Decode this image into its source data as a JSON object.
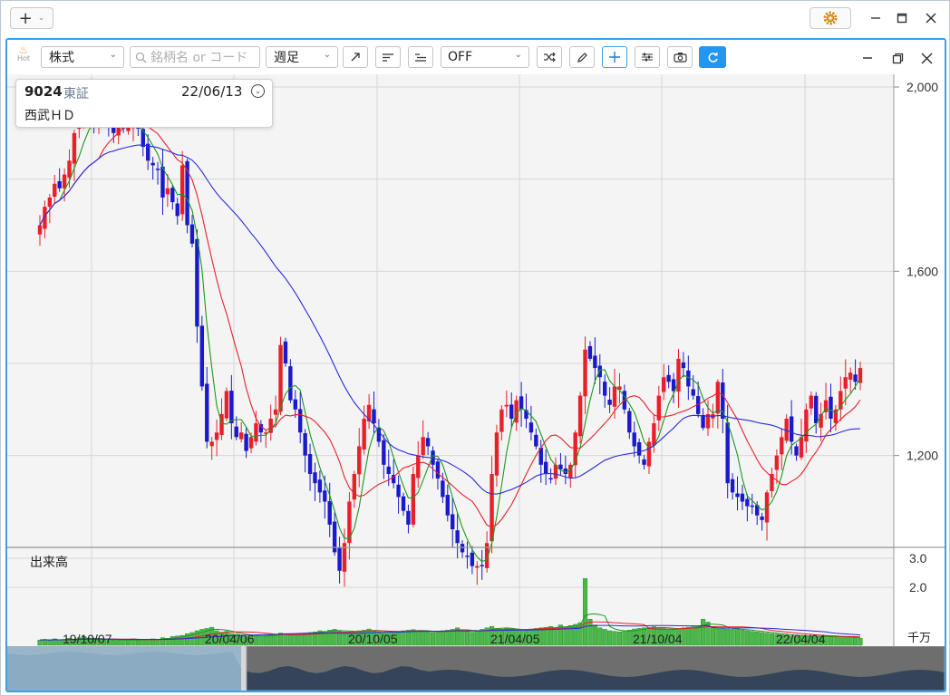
{
  "window": {
    "add_tab_label": "+",
    "controls": [
      "minimize-icon",
      "maximize-icon",
      "close-icon"
    ]
  },
  "toolbar": {
    "hot_label": "Hot",
    "market_select": "株式",
    "search_placeholder": "銘柄名 or コード",
    "period_select": "週足",
    "indicator_select": "OFF",
    "icons": [
      "trend-line-icon",
      "align-left-icon",
      "align-right-icon",
      "shuffle-icon",
      "pencil-icon",
      "crosshair-icon",
      "settings-sliders-icon",
      "camera-icon",
      "refresh-icon"
    ],
    "window_controls": [
      "minimize-icon",
      "restore-icon",
      "close-icon"
    ]
  },
  "info": {
    "code": "9024",
    "exchange": "東証",
    "date": "22/06/13",
    "name": "西武ＨＤ"
  },
  "chart_data": {
    "type": "candlestick",
    "price_axis": {
      "ticks": [
        "2,000",
        "1,600",
        "1,200"
      ],
      "range": [
        1040,
        2000
      ]
    },
    "volume_axis": {
      "label": "出来高",
      "ticks": [
        "3.0",
        "2.0"
      ],
      "unit": "千万",
      "range": [
        0,
        3.0
      ]
    },
    "x_ticks": [
      "19/10/07",
      "20/04/06",
      "20/10/05",
      "21/04/05",
      "21/10/04",
      "22/04/04"
    ],
    "colors": {
      "up": "#e8202a",
      "down": "#1a1acc",
      "ma_short": "#1a9a1a",
      "ma_mid": "#e8202a",
      "ma_long": "#2a2ae0",
      "volume": "#49b949"
    },
    "close": [
      1700,
      1740,
      1760,
      1790,
      1780,
      1810,
      1840,
      1900,
      1920,
      1935,
      1940,
      1920,
      1950,
      1960,
      1930,
      1900,
      1925,
      1910,
      1920,
      1915,
      1910,
      1870,
      1840,
      1830,
      1820,
      1760,
      1780,
      1750,
      1720,
      1830,
      1700,
      1660,
      1480,
      1350,
      1230,
      1230,
      1250,
      1290,
      1340,
      1270,
      1240,
      1250,
      1210,
      1240,
      1270,
      1250,
      1250,
      1280,
      1300,
      1440,
      1400,
      1320,
      1300,
      1250,
      1200,
      1160,
      1140,
      1120,
      1100,
      1050,
      990,
      950,
      1010,
      1100,
      1160,
      1220,
      1280,
      1310,
      1270,
      1230,
      1180,
      1160,
      1140,
      1110,
      1080,
      1050,
      1160,
      1200,
      1240,
      1220,
      1180,
      1150,
      1110,
      1070,
      1040,
      1010,
      990,
      980,
      960,
      960,
      960,
      1010,
      1160,
      1250,
      1300,
      1310,
      1280,
      1320,
      1300,
      1280,
      1250,
      1220,
      1180,
      1160,
      1150,
      1180,
      1170,
      1160,
      1180,
      1250,
      1330,
      1430,
      1410,
      1390,
      1370,
      1330,
      1310,
      1350,
      1350,
      1300,
      1250,
      1220,
      1200,
      1180,
      1230,
      1270,
      1330,
      1370,
      1360,
      1340,
      1410,
      1390,
      1350,
      1330,
      1290,
      1260,
      1290,
      1290,
      1360,
      1280,
      1140,
      1120,
      1110,
      1100,
      1090,
      1090,
      1070,
      1060,
      1120,
      1160,
      1200,
      1240,
      1280,
      1230,
      1200,
      1240,
      1300,
      1330,
      1270,
      1290,
      1320,
      1280,
      1300,
      1340,
      1370,
      1380,
      1360,
      1390
    ],
    "volume": [
      0.18,
      0.2,
      0.16,
      0.22,
      0.18,
      0.2,
      0.24,
      0.2,
      0.26,
      0.3,
      0.22,
      0.2,
      0.18,
      0.22,
      0.2,
      0.18,
      0.16,
      0.18,
      0.2,
      0.22,
      0.16,
      0.18,
      0.2,
      0.22,
      0.2,
      0.26,
      0.24,
      0.3,
      0.32,
      0.34,
      0.4,
      0.44,
      0.5,
      0.55,
      0.58,
      0.62,
      0.5,
      0.45,
      0.48,
      0.4,
      0.38,
      0.35,
      0.3,
      0.34,
      0.32,
      0.3,
      0.34,
      0.36,
      0.38,
      0.42,
      0.4,
      0.38,
      0.36,
      0.4,
      0.42,
      0.44,
      0.46,
      0.5,
      0.48,
      0.52,
      0.55,
      0.48,
      0.46,
      0.44,
      0.48,
      0.5,
      0.52,
      0.56,
      0.5,
      0.46,
      0.44,
      0.42,
      0.45,
      0.48,
      0.5,
      0.52,
      0.54,
      0.5,
      0.48,
      0.46,
      0.44,
      0.48,
      0.5,
      0.52,
      0.55,
      0.6,
      0.5,
      0.48,
      0.45,
      0.5,
      0.55,
      0.6,
      0.65,
      0.58,
      0.55,
      0.6,
      0.56,
      0.52,
      0.5,
      0.54,
      0.56,
      0.58,
      0.6,
      0.62,
      0.65,
      0.6,
      0.7,
      0.62,
      0.68,
      0.72,
      0.78,
      2.3,
      0.9,
      0.7,
      0.6,
      0.55,
      0.5,
      0.48,
      0.46,
      0.5,
      0.52,
      0.56,
      0.58,
      0.6,
      0.62,
      0.64,
      0.6,
      0.58,
      0.56,
      0.54,
      0.58,
      0.6,
      0.62,
      0.64,
      0.66,
      0.9,
      0.8,
      0.62,
      0.6,
      0.58,
      0.56,
      0.55,
      0.54,
      0.52,
      0.5,
      0.48,
      0.46,
      0.44,
      0.42,
      0.4,
      0.38,
      0.36,
      0.34,
      0.32,
      0.3,
      0.34,
      0.32,
      0.3,
      0.28,
      0.3,
      0.32,
      0.3,
      0.28,
      0.26,
      0.3,
      0.28,
      0.26,
      0.24
    ]
  }
}
